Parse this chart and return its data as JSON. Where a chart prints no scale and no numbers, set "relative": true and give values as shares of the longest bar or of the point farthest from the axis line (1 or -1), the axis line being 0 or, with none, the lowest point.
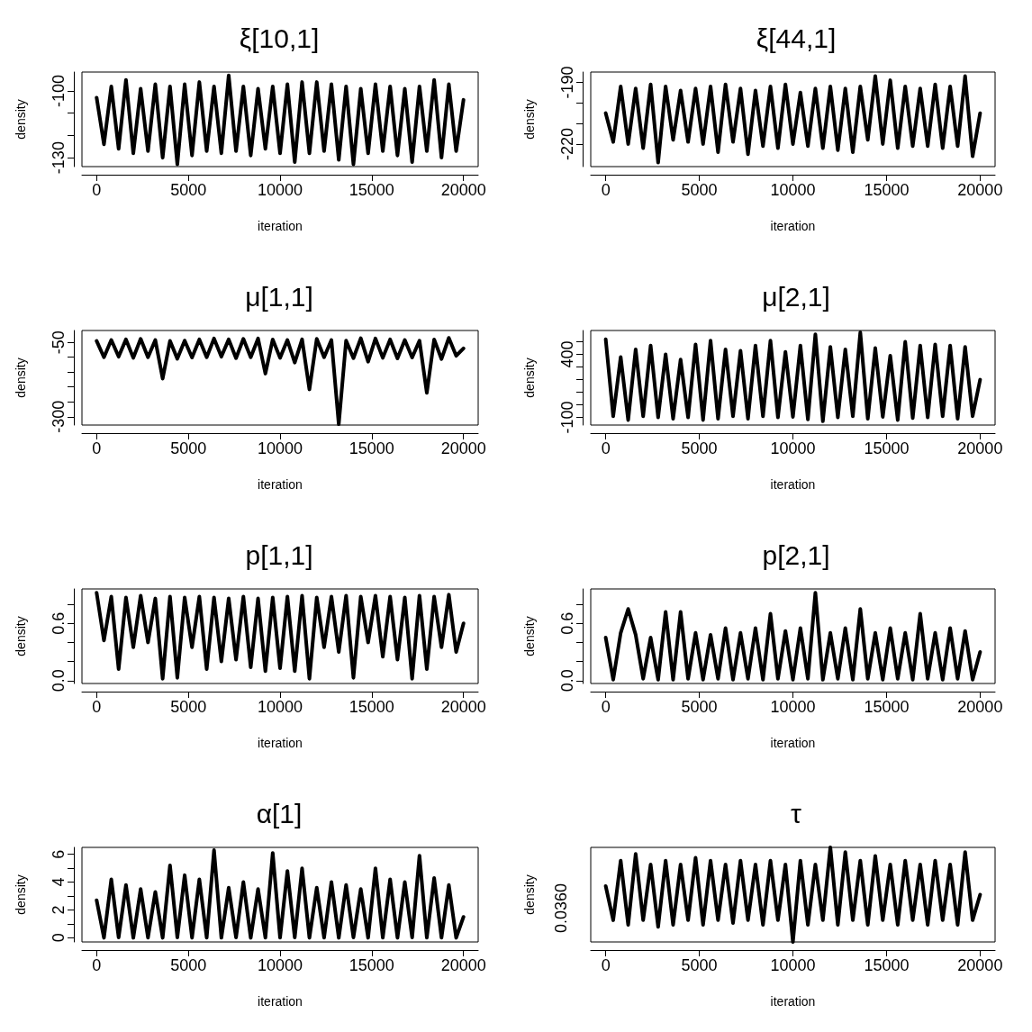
{
  "chart_data": [
    {
      "type": "line",
      "title": "ξ[10,1]",
      "xlabel": "iteration",
      "ylabel": "density",
      "xlim": [
        -800,
        20800
      ],
      "xticks": [
        0,
        5000,
        10000,
        15000,
        20000
      ],
      "ylim": [
        -134,
        -91.5
      ],
      "yticks": [
        -130,
        {
          "value": -120,
          "label": null
        },
        {
          "value": -110,
          "label": null
        },
        -100
      ],
      "grid": false,
      "marker": "none",
      "line_style": "solid",
      "series": [
        {
          "color": "#000000",
          "x": [
            0,
            400,
            800,
            1200,
            1600,
            2000,
            2400,
            2800,
            3200,
            3600,
            4000,
            4400,
            4800,
            5200,
            5600,
            6000,
            6400,
            6800,
            7200,
            7600,
            8000,
            8400,
            8800,
            9200,
            9600,
            10000,
            10400,
            10800,
            11200,
            11600,
            12000,
            12400,
            12800,
            13200,
            13600,
            14000,
            14400,
            14800,
            15200,
            15600,
            16000,
            16400,
            16800,
            17200,
            17600,
            18000,
            18400,
            18800,
            19200,
            19600,
            20000
          ],
          "values": [
            -103,
            -124,
            -98,
            -126,
            -95,
            -128,
            -99,
            -127,
            -97,
            -130,
            -98,
            -133,
            -97,
            -129,
            -96,
            -127,
            -98,
            -128,
            -93,
            -127,
            -98,
            -129,
            -99,
            -126,
            -98,
            -128,
            -97,
            -132,
            -96,
            -128,
            -96,
            -127,
            -97,
            -131,
            -98,
            -133,
            -99,
            -128,
            -97,
            -127,
            -98,
            -129,
            -99,
            -132,
            -98,
            -127,
            -95,
            -130,
            -97,
            -127,
            -104
          ]
        }
      ]
    },
    {
      "type": "line",
      "title": "ξ[44,1]",
      "xlabel": "iteration",
      "ylabel": "density",
      "xlim": [
        -800,
        20800
      ],
      "xticks": [
        0,
        5000,
        10000,
        15000,
        20000
      ],
      "ylim": [
        -231,
        -185
      ],
      "yticks": [
        -220,
        {
          "value": -210,
          "label": null
        },
        {
          "value": -200,
          "label": null
        },
        -190
      ],
      "grid": false,
      "marker": "none",
      "line_style": "solid",
      "series": [
        {
          "color": "#000000",
          "x": [
            0,
            400,
            800,
            1200,
            1600,
            2000,
            2400,
            2800,
            3200,
            3600,
            4000,
            4400,
            4800,
            5200,
            5600,
            6000,
            6400,
            6800,
            7200,
            7600,
            8000,
            8400,
            8800,
            9200,
            9600,
            10000,
            10400,
            10800,
            11200,
            11600,
            12000,
            12400,
            12800,
            13200,
            13600,
            14000,
            14400,
            14800,
            15200,
            15600,
            16000,
            16400,
            16800,
            17200,
            17600,
            18000,
            18400,
            18800,
            19200,
            19600,
            20000
          ],
          "values": [
            -205,
            -219,
            -192,
            -220,
            -193,
            -222,
            -191,
            -229,
            -192,
            -218,
            -194,
            -219,
            -193,
            -220,
            -192,
            -224,
            -191,
            -219,
            -193,
            -225,
            -194,
            -221,
            -192,
            -222,
            -191,
            -220,
            -195,
            -221,
            -193,
            -222,
            -192,
            -223,
            -193,
            -224,
            -192,
            -218,
            -187,
            -220,
            -189,
            -222,
            -192,
            -221,
            -193,
            -221,
            -191,
            -222,
            -192,
            -221,
            -187,
            -226,
            -205
          ]
        }
      ]
    },
    {
      "type": "line",
      "title": "μ[1,1]",
      "xlabel": "iteration",
      "ylabel": "density",
      "xlim": [
        -800,
        20800
      ],
      "xticks": [
        0,
        5000,
        10000,
        15000,
        20000
      ],
      "ylim": [
        -328,
        -10
      ],
      "yticks": [
        -300,
        {
          "value": -250,
          "label": null
        },
        {
          "value": -200,
          "label": null
        },
        {
          "value": -150,
          "label": null
        },
        {
          "value": -100,
          "label": null
        },
        -50
      ],
      "grid": false,
      "marker": "none",
      "line_style": "solid",
      "series": [
        {
          "color": "#000000",
          "x": [
            0,
            400,
            800,
            1200,
            1600,
            2000,
            2400,
            2800,
            3200,
            3600,
            4000,
            4400,
            4800,
            5200,
            5600,
            6000,
            6400,
            6800,
            7200,
            7600,
            8000,
            8400,
            8800,
            9200,
            9600,
            10000,
            10400,
            10800,
            11200,
            11600,
            12000,
            12400,
            12800,
            13200,
            13600,
            14000,
            14400,
            14800,
            15200,
            15600,
            16000,
            16400,
            16800,
            17200,
            17600,
            18000,
            18400,
            18800,
            19200,
            19600,
            20000
          ],
          "values": [
            -45,
            -100,
            -42,
            -98,
            -40,
            -102,
            -38,
            -100,
            -42,
            -172,
            -45,
            -105,
            -44,
            -101,
            -40,
            -100,
            -37,
            -98,
            -40,
            -103,
            -38,
            -100,
            -37,
            -155,
            -40,
            -102,
            -42,
            -118,
            -40,
            -208,
            -38,
            -100,
            -42,
            -325,
            -44,
            -103,
            -36,
            -115,
            -37,
            -102,
            -40,
            -104,
            -42,
            -101,
            -44,
            -220,
            -40,
            -106,
            -35,
            -95,
            -70
          ]
        }
      ]
    },
    {
      "type": "line",
      "title": "μ[2,1]",
      "xlabel": "iteration",
      "ylabel": "density",
      "xlim": [
        -800,
        20800
      ],
      "xticks": [
        0,
        5000,
        10000,
        15000,
        20000
      ],
      "ylim": [
        -160,
        590
      ],
      "yticks": [
        -100,
        {
          "value": 0,
          "label": null
        },
        {
          "value": 100,
          "label": null
        },
        {
          "value": 200,
          "label": null
        },
        {
          "value": 300,
          "label": null
        },
        400,
        {
          "value": 500,
          "label": null
        }
      ],
      "grid": false,
      "marker": "none",
      "line_style": "solid",
      "series": [
        {
          "color": "#000000",
          "x": [
            0,
            400,
            800,
            1200,
            1600,
            2000,
            2400,
            2800,
            3200,
            3600,
            4000,
            4400,
            4800,
            5200,
            5600,
            6000,
            6400,
            6800,
            7200,
            7600,
            8000,
            8400,
            8800,
            9200,
            9600,
            10000,
            10400,
            10800,
            11200,
            11600,
            12000,
            12400,
            12800,
            13200,
            13600,
            14000,
            14400,
            14800,
            15200,
            15600,
            16000,
            16400,
            16800,
            17200,
            17600,
            18000,
            18400,
            18800,
            19200,
            19600,
            20000
          ],
          "values": [
            520,
            -90,
            380,
            -120,
            440,
            -90,
            470,
            -100,
            400,
            -110,
            360,
            -100,
            480,
            -120,
            510,
            -110,
            440,
            -90,
            430,
            -110,
            470,
            -90,
            510,
            -100,
            420,
            -95,
            470,
            -115,
            560,
            -130,
            460,
            -100,
            440,
            -90,
            575,
            -110,
            450,
            -95,
            390,
            -120,
            500,
            -105,
            470,
            -100,
            480,
            -90,
            470,
            -110,
            460,
            -90,
            200
          ]
        }
      ]
    },
    {
      "type": "line",
      "title": "p[1,1]",
      "xlabel": "iteration",
      "ylabel": "density",
      "xlim": [
        -800,
        20800
      ],
      "xticks": [
        0,
        5000,
        10000,
        15000,
        20000
      ],
      "ylim": [
        -0.03,
        0.96
      ],
      "yticks": [
        {
          "value": 0,
          "label": "0.0"
        },
        {
          "value": 0.2,
          "label": null
        },
        {
          "value": 0.4,
          "label": null
        },
        0.6,
        {
          "value": 0.8,
          "label": null
        }
      ],
      "grid": false,
      "marker": "none",
      "line_style": "solid",
      "series": [
        {
          "color": "#000000",
          "x": [
            0,
            400,
            800,
            1200,
            1600,
            2000,
            2400,
            2800,
            3200,
            3600,
            4000,
            4400,
            4800,
            5200,
            5600,
            6000,
            6400,
            6800,
            7200,
            7600,
            8000,
            8400,
            8800,
            9200,
            9600,
            10000,
            10400,
            10800,
            11200,
            11600,
            12000,
            12400,
            12800,
            13200,
            13600,
            14000,
            14400,
            14800,
            15200,
            15600,
            16000,
            16400,
            16800,
            17200,
            17600,
            18000,
            18400,
            18800,
            19200,
            19600,
            20000
          ],
          "values": [
            0.92,
            0.42,
            0.88,
            0.12,
            0.87,
            0.35,
            0.89,
            0.4,
            0.86,
            0.02,
            0.88,
            0.03,
            0.87,
            0.35,
            0.88,
            0.12,
            0.87,
            0.2,
            0.86,
            0.22,
            0.88,
            0.14,
            0.86,
            0.1,
            0.87,
            0.13,
            0.88,
            0.1,
            0.89,
            0.02,
            0.87,
            0.35,
            0.88,
            0.3,
            0.89,
            0.03,
            0.88,
            0.4,
            0.89,
            0.25,
            0.88,
            0.22,
            0.87,
            0.02,
            0.89,
            0.12,
            0.88,
            0.35,
            0.9,
            0.3,
            0.6
          ]
        }
      ]
    },
    {
      "type": "line",
      "title": "p[2,1]",
      "xlabel": "iteration",
      "ylabel": "density",
      "xlim": [
        -800,
        20800
      ],
      "xticks": [
        0,
        5000,
        10000,
        15000,
        20000
      ],
      "ylim": [
        -0.03,
        0.96
      ],
      "yticks": [
        {
          "value": 0,
          "label": "0.0"
        },
        {
          "value": 0.2,
          "label": null
        },
        {
          "value": 0.4,
          "label": null
        },
        0.6,
        {
          "value": 0.8,
          "label": null
        }
      ],
      "grid": false,
      "marker": "none",
      "line_style": "solid",
      "series": [
        {
          "color": "#000000",
          "x": [
            0,
            400,
            800,
            1200,
            1600,
            2000,
            2400,
            2800,
            3200,
            3600,
            4000,
            4400,
            4800,
            5200,
            5600,
            6000,
            6400,
            6800,
            7200,
            7600,
            8000,
            8400,
            8800,
            9200,
            9600,
            10000,
            10400,
            10800,
            11200,
            11600,
            12000,
            12400,
            12800,
            13200,
            13600,
            14000,
            14400,
            14800,
            15200,
            15600,
            16000,
            16400,
            16800,
            17200,
            17600,
            18000,
            18400,
            18800,
            19200,
            19600,
            20000
          ],
          "values": [
            0.45,
            0.01,
            0.5,
            0.75,
            0.48,
            0.02,
            0.45,
            0.01,
            0.72,
            0.01,
            0.72,
            0.02,
            0.5,
            0.01,
            0.48,
            0.02,
            0.55,
            0.01,
            0.5,
            0.02,
            0.55,
            0.01,
            0.7,
            0.02,
            0.52,
            0.01,
            0.55,
            0.02,
            0.92,
            0.01,
            0.5,
            0.02,
            0.55,
            0.01,
            0.75,
            0.02,
            0.5,
            0.01,
            0.55,
            0.02,
            0.5,
            0.01,
            0.7,
            0.02,
            0.5,
            0.01,
            0.55,
            0.02,
            0.52,
            0.01,
            0.3
          ]
        }
      ]
    },
    {
      "type": "line",
      "title": "α[1]",
      "xlabel": "iteration",
      "ylabel": "density",
      "xlim": [
        -800,
        20800
      ],
      "xticks": [
        0,
        5000,
        10000,
        15000,
        20000
      ],
      "ylim": [
        -0.3,
        6.5
      ],
      "yticks": [
        0,
        {
          "value": 1,
          "label": null
        },
        2,
        {
          "value": 3,
          "label": null
        },
        4,
        {
          "value": 5,
          "label": null
        },
        6
      ],
      "grid": false,
      "marker": "none",
      "line_style": "solid",
      "series": [
        {
          "color": "#000000",
          "x": [
            0,
            400,
            800,
            1200,
            1600,
            2000,
            2400,
            2800,
            3200,
            3600,
            4000,
            4400,
            4800,
            5200,
            5600,
            6000,
            6400,
            6800,
            7200,
            7600,
            8000,
            8400,
            8800,
            9200,
            9600,
            10000,
            10400,
            10800,
            11200,
            11600,
            12000,
            12400,
            12800,
            13200,
            13600,
            14000,
            14400,
            14800,
            15200,
            15600,
            16000,
            16400,
            16800,
            17200,
            17600,
            18000,
            18400,
            18800,
            19200,
            19600,
            20000
          ],
          "values": [
            2.7,
            0,
            4.2,
            0.02,
            3.8,
            0,
            3.5,
            0.01,
            3.3,
            0,
            5.2,
            0.02,
            4.5,
            0,
            4.2,
            0.01,
            6.3,
            0,
            3.6,
            0.02,
            4,
            0,
            3.5,
            0.01,
            6.1,
            0,
            4.8,
            0.02,
            5,
            0,
            3.6,
            0.01,
            4,
            0,
            3.8,
            0.02,
            3.5,
            0,
            5,
            0.01,
            4.2,
            0,
            4,
            0.02,
            5.9,
            0,
            4.3,
            0.01,
            3.8,
            0,
            1.5
          ]
        }
      ]
    },
    {
      "type": "line",
      "title": "τ",
      "xlabel": "iteration",
      "ylabel": "density",
      "xlim": [
        -800,
        20800
      ],
      "xticks": [
        0,
        5000,
        10000,
        15000,
        20000
      ],
      "relative": true,
      "annotations": [
        "0.0360"
      ],
      "grid": false,
      "marker": "none",
      "line_style": "solid",
      "series": [
        {
          "color": "#000000",
          "x": [
            0,
            400,
            800,
            1200,
            1600,
            2000,
            2400,
            2800,
            3200,
            3600,
            4000,
            4400,
            4800,
            5200,
            5600,
            6000,
            6400,
            6800,
            7200,
            7600,
            8000,
            8400,
            8800,
            9200,
            9600,
            10000,
            10400,
            10800,
            11200,
            11600,
            12000,
            12400,
            12800,
            13200,
            13600,
            14000,
            14400,
            14800,
            15200,
            15600,
            16000,
            16400,
            16800,
            17200,
            17600,
            18000,
            18400,
            18800,
            19200,
            19600,
            20000
          ],
          "values": [
            0.59,
            0.23,
            0.86,
            0.18,
            0.93,
            0.23,
            0.82,
            0.16,
            0.86,
            0.18,
            0.82,
            0.23,
            0.89,
            0.18,
            0.86,
            0.23,
            0.82,
            0.2,
            0.86,
            0.23,
            0.82,
            0.18,
            0.86,
            0.23,
            0.82,
            0,
            0.86,
            0.18,
            0.82,
            0.23,
            1,
            0.18,
            0.95,
            0.23,
            0.86,
            0.18,
            0.91,
            0.23,
            0.82,
            0.18,
            0.86,
            0.23,
            0.82,
            0.18,
            0.86,
            0.23,
            0.82,
            0.18,
            0.95,
            0.23,
            0.5
          ]
        }
      ]
    }
  ]
}
